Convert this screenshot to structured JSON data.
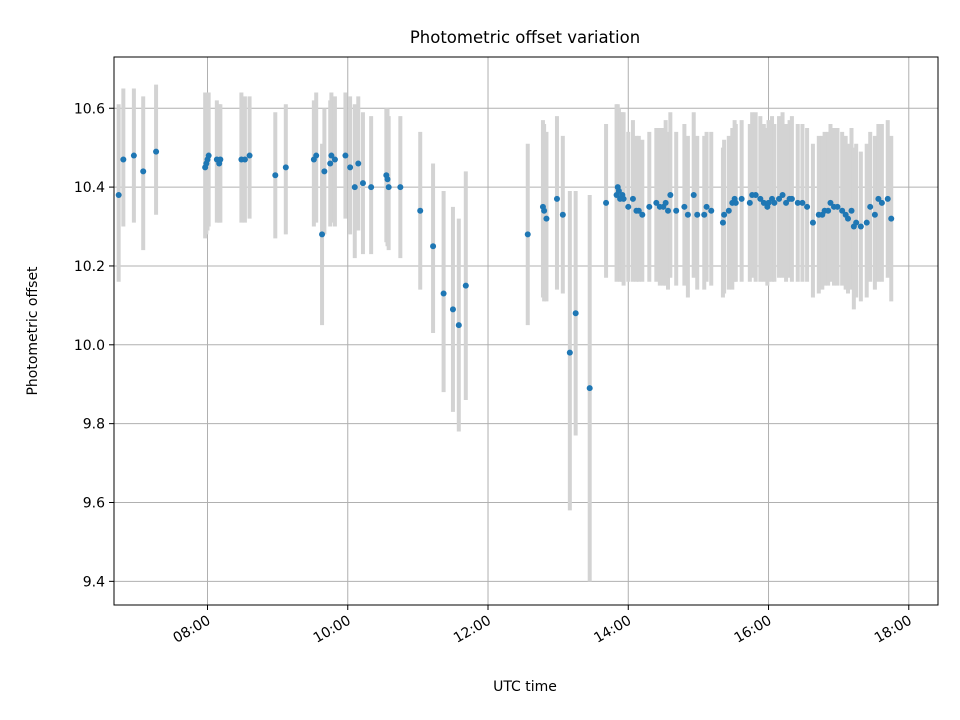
{
  "chart_data": {
    "type": "scatter",
    "title": "Photometric offset variation",
    "xlabel": "UTC time",
    "ylabel": "Photometric offset",
    "xlim": [
      "06:40",
      "18:25"
    ],
    "ylim": [
      9.34,
      10.73
    ],
    "x_ticks": [
      "08:00",
      "10:00",
      "12:00",
      "14:00",
      "16:00",
      "18:00"
    ],
    "y_ticks": [
      "9.4",
      "9.6",
      "9.8",
      "10.0",
      "10.2",
      "10.4",
      "10.6"
    ],
    "grid": true,
    "marker_color": "#1f77b4",
    "errorbar_color": "#d3d3d3",
    "series": [
      {
        "x": [
          "06:44",
          "06:48",
          "06:57",
          "07:05",
          "07:16",
          "07:58",
          "07:59",
          "08:00",
          "08:01",
          "08:08",
          "08:10",
          "08:11",
          "08:29",
          "08:32",
          "08:36",
          "08:58",
          "09:07",
          "09:31",
          "09:33",
          "09:38",
          "09:40",
          "09:45",
          "09:46",
          "09:49",
          "09:58",
          "10:02",
          "10:06",
          "10:09",
          "10:13",
          "10:20",
          "10:33",
          "10:34",
          "10:35",
          "10:45",
          "11:02",
          "11:13",
          "11:22",
          "11:30",
          "11:35",
          "11:41",
          "12:34",
          "12:47",
          "12:48",
          "12:50",
          "12:59",
          "13:04",
          "13:10",
          "13:15",
          "13:27",
          "13:41",
          "13:50",
          "13:51",
          "13:52",
          "13:53",
          "13:55",
          "13:56",
          "14:00",
          "14:04",
          "14:07",
          "14:09",
          "14:12",
          "14:18",
          "14:24",
          "14:27",
          "14:30",
          "14:32",
          "14:34",
          "14:36",
          "14:41",
          "14:48",
          "14:51",
          "14:56",
          "14:59",
          "15:05",
          "15:07",
          "15:11",
          "15:21",
          "15:22",
          "15:26",
          "15:29",
          "15:31",
          "15:32",
          "15:37",
          "15:44",
          "15:46",
          "15:49",
          "15:53",
          "15:56",
          "15:59",
          "16:00",
          "16:03",
          "16:05",
          "16:09",
          "16:12",
          "16:15",
          "16:18",
          "16:20",
          "16:25",
          "16:29",
          "16:33",
          "16:38",
          "16:43",
          "16:46",
          "16:48",
          "16:51",
          "16:53",
          "16:56",
          "16:59",
          "17:03",
          "17:06",
          "17:08",
          "17:11",
          "17:13",
          "17:15",
          "17:19",
          "17:24",
          "17:27",
          "17:31",
          "17:34",
          "17:37",
          "17:42",
          "17:45"
        ],
        "y": [
          10.38,
          10.47,
          10.48,
          10.44,
          10.49,
          10.45,
          10.46,
          10.47,
          10.48,
          10.47,
          10.46,
          10.47,
          10.47,
          10.47,
          10.48,
          10.43,
          10.45,
          10.47,
          10.48,
          10.28,
          10.44,
          10.46,
          10.48,
          10.47,
          10.48,
          10.45,
          10.4,
          10.46,
          10.41,
          10.4,
          10.43,
          10.42,
          10.4,
          10.4,
          10.34,
          10.25,
          10.13,
          10.09,
          10.05,
          10.15,
          10.28,
          10.35,
          10.34,
          10.32,
          10.37,
          10.33,
          9.98,
          10.08,
          9.89,
          10.36,
          10.38,
          10.4,
          10.39,
          10.37,
          10.38,
          10.37,
          10.35,
          10.37,
          10.34,
          10.34,
          10.33,
          10.35,
          10.36,
          10.35,
          10.35,
          10.36,
          10.34,
          10.38,
          10.34,
          10.35,
          10.33,
          10.38,
          10.33,
          10.33,
          10.35,
          10.34,
          10.31,
          10.33,
          10.34,
          10.36,
          10.37,
          10.36,
          10.37,
          10.36,
          10.38,
          10.38,
          10.37,
          10.36,
          10.35,
          10.36,
          10.37,
          10.36,
          10.37,
          10.38,
          10.36,
          10.37,
          10.37,
          10.36,
          10.36,
          10.35,
          10.31,
          10.33,
          10.33,
          10.34,
          10.34,
          10.36,
          10.35,
          10.35,
          10.34,
          10.33,
          10.32,
          10.34,
          10.3,
          10.31,
          10.3,
          10.31,
          10.35,
          10.33,
          10.37,
          10.36,
          10.37,
          10.32
        ],
        "err_low": [
          10.16,
          10.3,
          10.31,
          10.24,
          10.33,
          10.27,
          10.28,
          10.29,
          10.3,
          10.31,
          10.31,
          10.31,
          10.31,
          10.31,
          10.32,
          10.27,
          10.28,
          10.3,
          10.31,
          10.05,
          10.28,
          10.3,
          10.31,
          10.3,
          10.32,
          10.28,
          10.22,
          10.29,
          10.23,
          10.23,
          10.26,
          10.25,
          10.24,
          10.22,
          10.14,
          10.03,
          9.88,
          9.83,
          9.78,
          9.86,
          10.05,
          10.12,
          10.11,
          10.11,
          10.14,
          10.13,
          9.58,
          9.77,
          9.4,
          10.17,
          10.16,
          10.17,
          10.17,
          10.16,
          10.16,
          10.15,
          10.16,
          10.16,
          10.16,
          10.16,
          10.16,
          10.16,
          10.16,
          10.15,
          10.15,
          10.15,
          10.14,
          10.17,
          10.15,
          10.15,
          10.12,
          10.17,
          10.14,
          10.14,
          10.16,
          10.15,
          10.12,
          10.13,
          10.14,
          10.14,
          10.16,
          10.16,
          10.16,
          10.16,
          10.17,
          10.16,
          10.16,
          10.16,
          10.15,
          10.16,
          10.16,
          10.16,
          10.17,
          10.17,
          10.16,
          10.17,
          10.16,
          10.16,
          10.16,
          10.16,
          10.12,
          10.13,
          10.14,
          10.15,
          10.15,
          10.16,
          10.15,
          10.15,
          10.15,
          10.14,
          10.13,
          10.14,
          10.09,
          10.12,
          10.11,
          10.12,
          10.16,
          10.14,
          10.16,
          10.16,
          10.17,
          10.11
        ],
        "err_high": [
          10.61,
          10.65,
          10.65,
          10.63,
          10.66,
          10.64,
          10.64,
          10.64,
          10.64,
          10.62,
          10.61,
          10.61,
          10.64,
          10.63,
          10.63,
          10.59,
          10.61,
          10.62,
          10.64,
          10.51,
          10.6,
          10.62,
          10.64,
          10.63,
          10.64,
          10.63,
          10.61,
          10.63,
          10.59,
          10.58,
          10.6,
          10.6,
          10.58,
          10.58,
          10.54,
          10.46,
          10.39,
          10.35,
          10.32,
          10.44,
          10.51,
          10.57,
          10.56,
          10.54,
          10.58,
          10.53,
          10.39,
          10.39,
          10.38,
          10.56,
          10.61,
          10.61,
          10.6,
          10.59,
          10.59,
          10.59,
          10.54,
          10.57,
          10.53,
          10.53,
          10.52,
          10.54,
          10.55,
          10.55,
          10.55,
          10.57,
          10.54,
          10.59,
          10.54,
          10.56,
          10.53,
          10.59,
          10.53,
          10.53,
          10.54,
          10.54,
          10.5,
          10.52,
          10.53,
          10.55,
          10.57,
          10.56,
          10.57,
          10.56,
          10.59,
          10.59,
          10.58,
          10.56,
          10.55,
          10.57,
          10.58,
          10.56,
          10.58,
          10.59,
          10.56,
          10.57,
          10.58,
          10.56,
          10.56,
          10.55,
          10.51,
          10.53,
          10.53,
          10.54,
          10.54,
          10.56,
          10.55,
          10.55,
          10.54,
          10.53,
          10.51,
          10.55,
          10.5,
          10.51,
          10.49,
          10.51,
          10.54,
          10.53,
          10.56,
          10.56,
          10.57,
          10.53
        ]
      }
    ]
  }
}
